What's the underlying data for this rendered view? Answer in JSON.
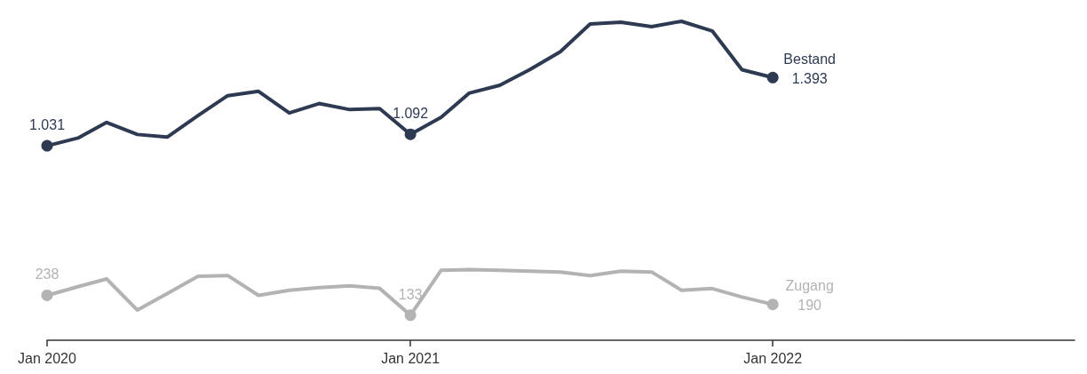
{
  "chart_data": {
    "type": "line",
    "x": [
      "2020-01",
      "2020-02",
      "2020-03",
      "2020-04",
      "2020-05",
      "2020-06",
      "2020-07",
      "2020-08",
      "2020-09",
      "2020-10",
      "2020-11",
      "2020-12",
      "2021-01",
      "2021-02",
      "2021-03",
      "2021-04",
      "2021-05",
      "2021-06",
      "2021-07",
      "2021-08",
      "2021-09",
      "2021-10",
      "2021-11",
      "2021-12",
      "2022-01"
    ],
    "series": [
      {
        "name": "Bestand",
        "color": "#2e3a52",
        "values": [
          1031,
          1072,
          1155,
          1091,
          1077,
          1191,
          1297,
          1320,
          1205,
          1255,
          1223,
          1228,
          1092,
          1182,
          1310,
          1352,
          1434,
          1530,
          1677,
          1686,
          1663,
          1691,
          1640,
          1434,
          1393
        ],
        "value_labels": [
          "1.031",
          null,
          null,
          null,
          null,
          null,
          null,
          null,
          null,
          null,
          null,
          null,
          "1.092",
          null,
          null,
          null,
          null,
          null,
          null,
          null,
          null,
          null,
          null,
          null,
          "1.393"
        ]
      },
      {
        "name": "Zugang",
        "color": "#b3b3b3",
        "values": [
          238,
          284,
          325,
          160,
          247,
          339,
          343,
          238,
          265,
          279,
          288,
          275,
          133,
          371,
          375,
          371,
          366,
          362,
          343,
          366,
          362,
          265,
          274,
          229,
          190
        ],
        "value_labels": [
          "238",
          null,
          null,
          null,
          null,
          null,
          null,
          null,
          null,
          null,
          null,
          null,
          "133",
          null,
          null,
          null,
          null,
          null,
          null,
          null,
          null,
          null,
          null,
          null,
          "190"
        ]
      }
    ],
    "xlim": [
      "2020-01",
      "2022-11"
    ],
    "xticks": [
      {
        "value": "2020-01",
        "label": "Jan 2020"
      },
      {
        "value": "2021-01",
        "label": "Jan 2021"
      },
      {
        "value": "2022-01",
        "label": "Jan 2022"
      }
    ],
    "grid": false,
    "legend": false,
    "line_style": "solid",
    "tick_labels": "x"
  }
}
